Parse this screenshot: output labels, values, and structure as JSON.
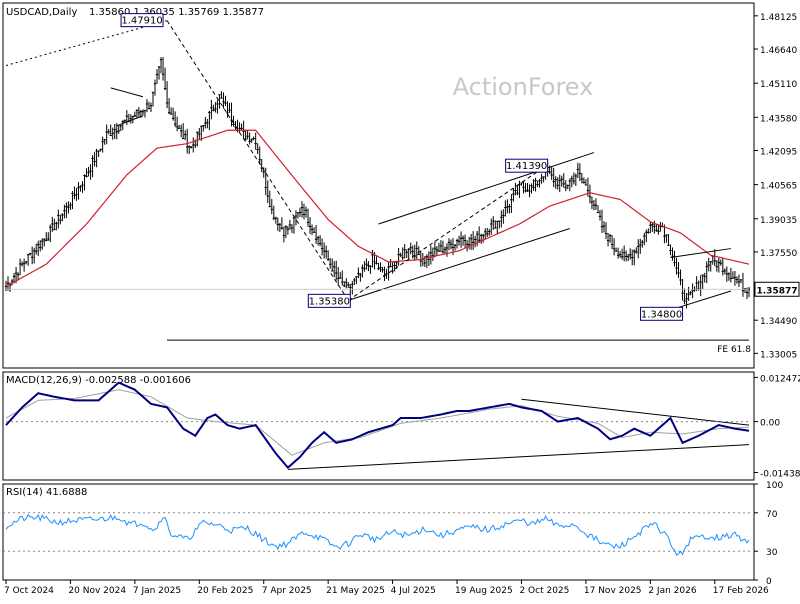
{
  "header": {
    "symbol": "USDCAD,Daily",
    "ohlc": "1.35860 1.36035 1.35769 1.35877"
  },
  "watermark": "ActionForex",
  "colors": {
    "background": "#ffffff",
    "frame": "#000000",
    "candle": "#000000",
    "ma": "#d2202f",
    "macd_line": "#000080",
    "macd_signal": "#a0a0a0",
    "rsi": "#1e90ff",
    "label_box_border": "#000080",
    "watermark": "#c8c8c8",
    "last_price_bg": "#ffffff"
  },
  "chart_data": [
    {
      "type": "line",
      "name": "price",
      "representation": "daily candlesticks (OHLC) with moving average",
      "ylim": [
        1.3235,
        1.487
      ],
      "y_ticks": [
        "1.48125",
        "1.46640",
        "1.45110",
        "1.43580",
        "1.42095",
        "1.40565",
        "1.39035",
        "1.37550",
        "1.36020",
        "1.34490",
        "1.33005"
      ],
      "y_tick_values": [
        1.48125,
        1.4664,
        1.4511,
        1.4358,
        1.42095,
        1.40565,
        1.39035,
        1.3755,
        1.3602,
        1.3449,
        1.33005
      ],
      "x_ticks": [
        "7 Oct 2024",
        "20 Nov 2024",
        "7 Jan 2025",
        "20 Feb 2025",
        "7 Apr 2025",
        "21 May 2025",
        "4 Jul 2025",
        "19 Aug 2025",
        "2 Oct 2025",
        "17 Nov 2025",
        "2 Jan 2026",
        "17 Feb 2026"
      ],
      "x_tick_index": [
        0,
        32,
        64,
        96,
        128,
        160,
        192,
        224,
        256,
        288,
        320,
        352
      ],
      "num_bars": 370,
      "close_anchors": [
        [
          0,
          1.36
        ],
        [
          10,
          1.372
        ],
        [
          20,
          1.382
        ],
        [
          30,
          1.395
        ],
        [
          40,
          1.41
        ],
        [
          50,
          1.428
        ],
        [
          58,
          1.433
        ],
        [
          66,
          1.438
        ],
        [
          72,
          1.442
        ],
        [
          77,
          1.46
        ],
        [
          80,
          1.442
        ],
        [
          86,
          1.43
        ],
        [
          92,
          1.422
        ],
        [
          100,
          1.435
        ],
        [
          106,
          1.445
        ],
        [
          112,
          1.436
        ],
        [
          118,
          1.428
        ],
        [
          124,
          1.426
        ],
        [
          128,
          1.41
        ],
        [
          132,
          1.394
        ],
        [
          138,
          1.385
        ],
        [
          142,
          1.387
        ],
        [
          147,
          1.396
        ],
        [
          152,
          1.387
        ],
        [
          160,
          1.372
        ],
        [
          166,
          1.362
        ],
        [
          170,
          1.359
        ],
        [
          176,
          1.365
        ],
        [
          182,
          1.372
        ],
        [
          188,
          1.365
        ],
        [
          194,
          1.371
        ],
        [
          200,
          1.378
        ],
        [
          208,
          1.372
        ],
        [
          214,
          1.376
        ],
        [
          220,
          1.378
        ],
        [
          226,
          1.382
        ],
        [
          232,
          1.38
        ],
        [
          238,
          1.385
        ],
        [
          244,
          1.389
        ],
        [
          250,
          1.397
        ],
        [
          256,
          1.405
        ],
        [
          262,
          1.404
        ],
        [
          268,
          1.412
        ],
        [
          272,
          1.408
        ],
        [
          278,
          1.405
        ],
        [
          284,
          1.411
        ],
        [
          290,
          1.402
        ],
        [
          296,
          1.387
        ],
        [
          302,
          1.378
        ],
        [
          308,
          1.372
        ],
        [
          314,
          1.378
        ],
        [
          320,
          1.387
        ],
        [
          326,
          1.387
        ],
        [
          330,
          1.378
        ],
        [
          334,
          1.364
        ],
        [
          338,
          1.353
        ],
        [
          344,
          1.361
        ],
        [
          350,
          1.372
        ],
        [
          356,
          1.369
        ],
        [
          362,
          1.364
        ],
        [
          366,
          1.36
        ],
        [
          369,
          1.35877
        ]
      ],
      "ma_anchors": [
        [
          0,
          1.36
        ],
        [
          20,
          1.37
        ],
        [
          40,
          1.388
        ],
        [
          60,
          1.41
        ],
        [
          75,
          1.422
        ],
        [
          90,
          1.424
        ],
        [
          110,
          1.43
        ],
        [
          124,
          1.43
        ],
        [
          140,
          1.412
        ],
        [
          160,
          1.39
        ],
        [
          175,
          1.378
        ],
        [
          190,
          1.371
        ],
        [
          205,
          1.372
        ],
        [
          225,
          1.376
        ],
        [
          240,
          1.382
        ],
        [
          255,
          1.388
        ],
        [
          270,
          1.396
        ],
        [
          290,
          1.402
        ],
        [
          305,
          1.399
        ],
        [
          320,
          1.389
        ],
        [
          335,
          1.384
        ],
        [
          350,
          1.374
        ],
        [
          369,
          1.37
        ]
      ],
      "annotations": [
        {
          "text": "1.47910",
          "index": 77,
          "value": 1.4791,
          "anchor": "left"
        },
        {
          "text": "1.41390",
          "index": 268,
          "value": 1.4139,
          "anchor": "left"
        },
        {
          "text": "1.35380",
          "index": 170,
          "value": 1.3538,
          "anchor": "left"
        },
        {
          "text": "1.34800",
          "index": 335,
          "value": 1.348,
          "anchor": "left"
        },
        {
          "text": "FE 61.8",
          "index": 369,
          "value": 1.336,
          "anchor": "right"
        }
      ],
      "last_price": "1.35877",
      "last_price_value": 1.35877,
      "trendlines": [
        {
          "style": "dotted",
          "points": [
            [
              0,
              1.459
            ],
            [
              80,
              1.4791
            ]
          ]
        },
        {
          "style": "dashed",
          "points": [
            [
              80,
              1.4791
            ],
            [
              170,
              1.3538
            ]
          ]
        },
        {
          "style": "dashed",
          "points": [
            [
              170,
              1.3538
            ],
            [
              268,
              1.4139
            ]
          ]
        },
        {
          "style": "solid",
          "points": [
            [
              185,
              1.388
            ],
            [
              292,
              1.42
            ]
          ]
        },
        {
          "style": "solid",
          "points": [
            [
              170,
              1.3538
            ],
            [
              280,
              1.386
            ]
          ]
        },
        {
          "style": "solid",
          "points": [
            [
              52,
              1.449
            ],
            [
              68,
              1.445
            ]
          ]
        },
        {
          "style": "solid",
          "points": [
            [
              55,
              1.432
            ],
            [
              68,
              1.4365
            ]
          ]
        },
        {
          "style": "solid",
          "points": [
            [
              330,
              1.373
            ],
            [
              360,
              1.377
            ]
          ]
        },
        {
          "style": "solid",
          "points": [
            [
              330,
              1.3495
            ],
            [
              360,
              1.358
            ]
          ]
        },
        {
          "style": "solid",
          "points": [
            [
              80,
              1.336
            ],
            [
              369,
              1.336
            ]
          ]
        },
        {
          "style": "thin",
          "points": [
            [
              0,
              1.35877
            ],
            [
              369,
              1.35877
            ]
          ]
        }
      ]
    },
    {
      "type": "line",
      "name": "MACD",
      "title": "MACD(12,26,9) -0.002588 -0.001606",
      "ylim": [
        -0.0165,
        0.014
      ],
      "y_ticks": [
        "0.012472",
        "0.00",
        "-0.014389"
      ],
      "y_tick_values": [
        0.012472,
        0.0,
        -0.014389
      ],
      "macd_anchors": [
        [
          0,
          -0.001
        ],
        [
          8,
          0.004
        ],
        [
          16,
          0.008
        ],
        [
          24,
          0.007
        ],
        [
          34,
          0.006
        ],
        [
          46,
          0.006
        ],
        [
          56,
          0.011
        ],
        [
          64,
          0.009
        ],
        [
          72,
          0.005
        ],
        [
          80,
          0.004
        ],
        [
          88,
          -0.002
        ],
        [
          94,
          -0.004
        ],
        [
          100,
          0.001
        ],
        [
          104,
          0.002
        ],
        [
          110,
          -0.001
        ],
        [
          116,
          -0.002
        ],
        [
          124,
          -0.001
        ],
        [
          134,
          -0.009
        ],
        [
          140,
          -0.013
        ],
        [
          146,
          -0.01
        ],
        [
          152,
          -0.006
        ],
        [
          158,
          -0.003
        ],
        [
          164,
          -0.006
        ],
        [
          172,
          -0.005
        ],
        [
          180,
          -0.003
        ],
        [
          186,
          -0.002
        ],
        [
          192,
          -0.001
        ],
        [
          196,
          0.001
        ],
        [
          206,
          0.001
        ],
        [
          216,
          0.002
        ],
        [
          224,
          0.003
        ],
        [
          230,
          0.003
        ],
        [
          240,
          0.004
        ],
        [
          250,
          0.005
        ],
        [
          256,
          0.004
        ],
        [
          266,
          0.003
        ],
        [
          274,
          0.0
        ],
        [
          284,
          0.001
        ],
        [
          294,
          -0.002
        ],
        [
          300,
          -0.005
        ],
        [
          306,
          -0.004
        ],
        [
          312,
          -0.002
        ],
        [
          320,
          -0.004
        ],
        [
          330,
          0.001
        ],
        [
          336,
          -0.006
        ],
        [
          344,
          -0.004
        ],
        [
          354,
          -0.001
        ],
        [
          362,
          -0.002
        ],
        [
          369,
          -0.0026
        ]
      ],
      "signal_anchors": [
        [
          0,
          0.001
        ],
        [
          16,
          0.006
        ],
        [
          34,
          0.0065
        ],
        [
          56,
          0.009
        ],
        [
          72,
          0.007
        ],
        [
          90,
          0.001
        ],
        [
          104,
          0.0
        ],
        [
          124,
          -0.001
        ],
        [
          142,
          -0.0095
        ],
        [
          158,
          -0.006
        ],
        [
          176,
          -0.0045
        ],
        [
          196,
          -0.0005
        ],
        [
          216,
          0.001
        ],
        [
          240,
          0.0035
        ],
        [
          256,
          0.0045
        ],
        [
          274,
          0.0015
        ],
        [
          294,
          -0.0005
        ],
        [
          306,
          -0.0045
        ],
        [
          320,
          -0.003
        ],
        [
          336,
          -0.0035
        ],
        [
          354,
          -0.002
        ],
        [
          369,
          -0.0016
        ]
      ],
      "trendlines": [
        {
          "style": "solid",
          "points": [
            [
              140,
              -0.0135
            ],
            [
              369,
              -0.0065
            ]
          ]
        },
        {
          "style": "solid",
          "points": [
            [
              256,
              0.0063
            ],
            [
              369,
              -0.001
            ]
          ]
        },
        {
          "style": "dotted",
          "points": [
            [
              0,
              0.0
            ],
            [
              369,
              0.0
            ]
          ]
        }
      ]
    },
    {
      "type": "line",
      "name": "RSI",
      "title": "RSI(14) 41.6888",
      "ylim": [
        0,
        100
      ],
      "y_ticks": [
        "100",
        "70",
        "30",
        "0"
      ],
      "y_tick_values": [
        100,
        70,
        30,
        0
      ],
      "anchors": [
        [
          0,
          56
        ],
        [
          8,
          64
        ],
        [
          16,
          65
        ],
        [
          26,
          60
        ],
        [
          34,
          62
        ],
        [
          46,
          63
        ],
        [
          56,
          66
        ],
        [
          62,
          58
        ],
        [
          68,
          60
        ],
        [
          74,
          52
        ],
        [
          78,
          68
        ],
        [
          82,
          48
        ],
        [
          90,
          42
        ],
        [
          98,
          60
        ],
        [
          104,
          58
        ],
        [
          112,
          52
        ],
        [
          120,
          54
        ],
        [
          128,
          42
        ],
        [
          134,
          35
        ],
        [
          140,
          38
        ],
        [
          148,
          50
        ],
        [
          156,
          44
        ],
        [
          164,
          34
        ],
        [
          170,
          38
        ],
        [
          176,
          48
        ],
        [
          184,
          42
        ],
        [
          192,
          50
        ],
        [
          200,
          46
        ],
        [
          208,
          54
        ],
        [
          216,
          46
        ],
        [
          224,
          52
        ],
        [
          232,
          55
        ],
        [
          240,
          52
        ],
        [
          248,
          58
        ],
        [
          256,
          62
        ],
        [
          262,
          58
        ],
        [
          268,
          64
        ],
        [
          274,
          56
        ],
        [
          282,
          58
        ],
        [
          290,
          46
        ],
        [
          296,
          38
        ],
        [
          304,
          34
        ],
        [
          310,
          42
        ],
        [
          316,
          52
        ],
        [
          322,
          58
        ],
        [
          328,
          46
        ],
        [
          334,
          24
        ],
        [
          340,
          42
        ],
        [
          348,
          46
        ],
        [
          356,
          44
        ],
        [
          362,
          48
        ],
        [
          366,
          40
        ],
        [
          369,
          41.69
        ]
      ],
      "last_value": 41.6888,
      "dotted_levels": [
        70,
        30
      ]
    }
  ]
}
